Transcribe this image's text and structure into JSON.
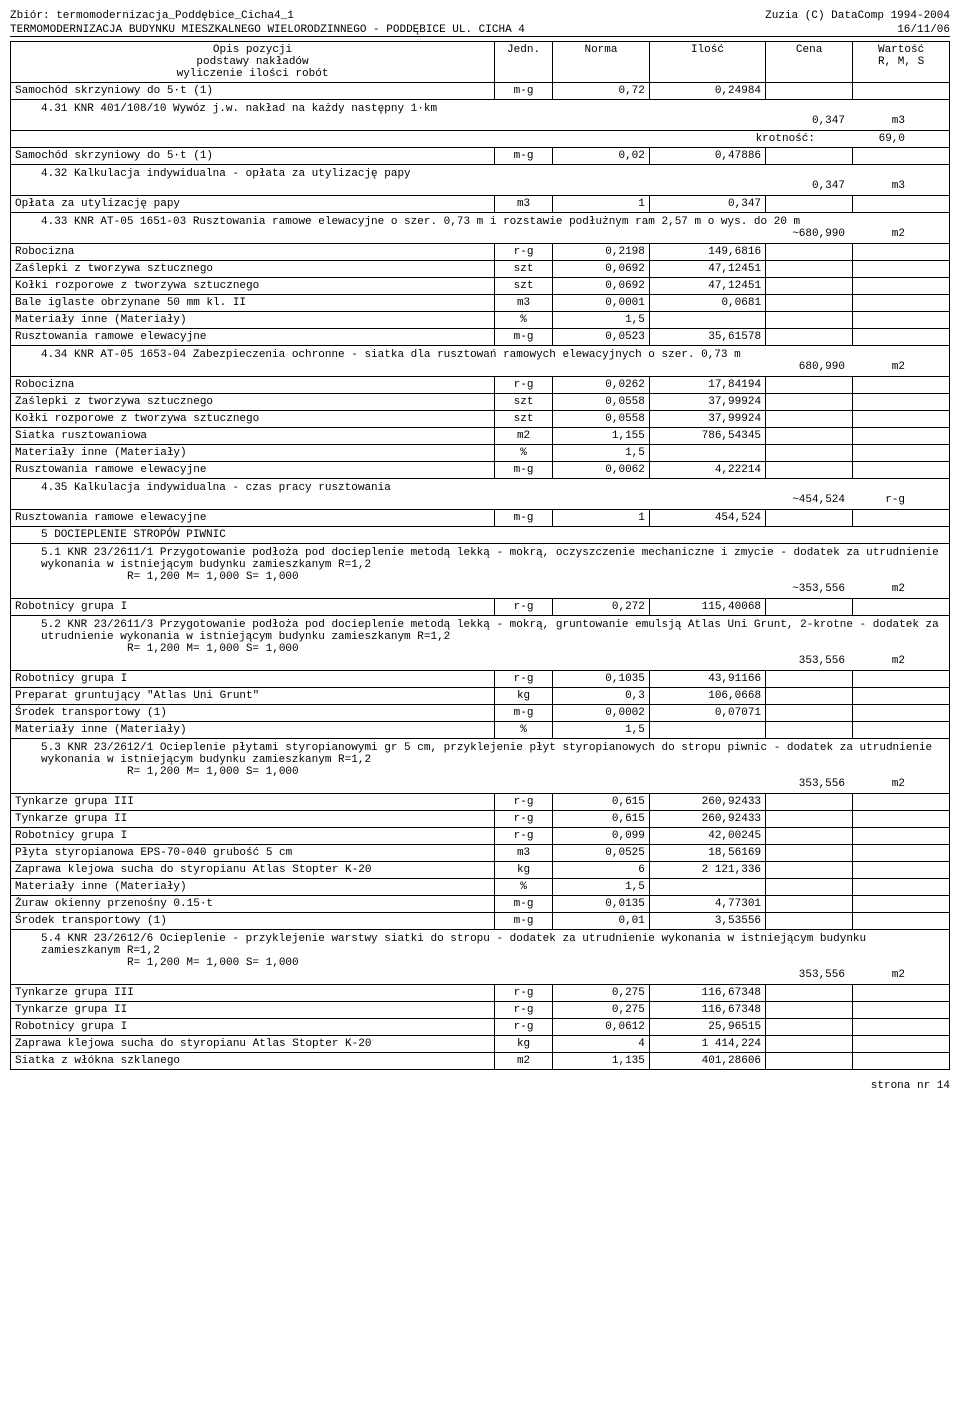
{
  "header": {
    "left1": "Zbiór: termomodernizacja_Poddębice_Cicha4_1",
    "right1": "Zuzia (C) DataComp 1994-2004",
    "left2": "TERMOMODERNIZACJA BUDYNKU MIESZKALNEGO WIELORODZINNEGO - PODDĘBICE UL. CICHA 4",
    "right2": "16/11/06"
  },
  "columns": {
    "opis": "Opis pozycji\npodstawy nakładów\nwyliczenie ilości robót",
    "jedn": "Jedn.",
    "norma": "Norma",
    "ilosc": "Ilość",
    "cena": "Cena",
    "wartosc": "Wartość\nR, M, S"
  },
  "rows": [
    {
      "type": "data",
      "opis": "Samochód skrzyniowy do 5·t (1)",
      "jedn": "m-g",
      "norma": "0,72",
      "ilosc": "0,24984"
    },
    {
      "type": "desc",
      "opis": "4.31 KNR 401/108/10 Wywóz j.w. nakład na każdy następny 1·km",
      "right": "0,347",
      "unit": "m3"
    },
    {
      "type": "krot",
      "label": "krotność:",
      "val": "69,0"
    },
    {
      "type": "data",
      "opis": "Samochód skrzyniowy do 5·t (1)",
      "jedn": "m-g",
      "norma": "0,02",
      "ilosc": "0,47886"
    },
    {
      "type": "desc",
      "opis": "4.32 Kalkulacja indywidualna - opłata za utylizację papy",
      "right": "0,347",
      "unit": "m3"
    },
    {
      "type": "data",
      "opis": "Opłata za utylizację papy",
      "jedn": "m3",
      "norma": "1",
      "ilosc": "0,347"
    },
    {
      "type": "desc",
      "opis": "4.33 KNR AT-05 1651-03 Rusztowania ramowe elewacyjne o szer. 0,73 m i rozstawie podłużnym ram 2,57 m o wys. do 20 m",
      "right": "~680,990",
      "unit": "m2"
    },
    {
      "type": "data",
      "opis": "Robocizna",
      "jedn": "r-g",
      "norma": "0,2198",
      "ilosc": "149,6816"
    },
    {
      "type": "data",
      "opis": "Zaślepki z tworzywa sztucznego",
      "jedn": "szt",
      "norma": "0,0692",
      "ilosc": "47,12451"
    },
    {
      "type": "data",
      "opis": "Kołki rozporowe z tworzywa sztucznego",
      "jedn": "szt",
      "norma": "0,0692",
      "ilosc": "47,12451"
    },
    {
      "type": "data",
      "opis": "Bale iglaste obrzynane 50 mm kl. II",
      "jedn": "m3",
      "norma": "0,0001",
      "ilosc": "0,0681"
    },
    {
      "type": "data",
      "opis": "Materiały inne (Materiały)",
      "jedn": "%",
      "norma": "1,5",
      "ilosc": ""
    },
    {
      "type": "data",
      "opis": "Rusztowania ramowe elewacyjne",
      "jedn": "m-g",
      "norma": "0,0523",
      "ilosc": "35,61578"
    },
    {
      "type": "desc",
      "opis": "4.34 KNR AT-05 1653-04 Zabezpieczenia ochronne - siatka dla rusztowań ramowych elewacyjnych o szer. 0,73 m",
      "right": "680,990",
      "unit": "m2"
    },
    {
      "type": "data",
      "opis": "Robocizna",
      "jedn": "r-g",
      "norma": "0,0262",
      "ilosc": "17,84194"
    },
    {
      "type": "data",
      "opis": "Zaślepki z tworzywa sztucznego",
      "jedn": "szt",
      "norma": "0,0558",
      "ilosc": "37,99924"
    },
    {
      "type": "data",
      "opis": "Kołki rozporowe z tworzywa sztucznego",
      "jedn": "szt",
      "norma": "0,0558",
      "ilosc": "37,99924"
    },
    {
      "type": "data",
      "opis": "Siatka rusztowaniowa",
      "jedn": "m2",
      "norma": "1,155",
      "ilosc": "786,54345"
    },
    {
      "type": "data",
      "opis": "Materiały inne (Materiały)",
      "jedn": "%",
      "norma": "1,5",
      "ilosc": ""
    },
    {
      "type": "data",
      "opis": "Rusztowania ramowe elewacyjne",
      "jedn": "m-g",
      "norma": "0,0062",
      "ilosc": "4,22214"
    },
    {
      "type": "desc",
      "opis": "4.35 Kalkulacja indywidualna - czas pracy rusztowania",
      "right": "~454,524",
      "unit": "r-g"
    },
    {
      "type": "data",
      "opis": "Rusztowania ramowe elewacyjne",
      "jedn": "m-g",
      "norma": "1",
      "ilosc": "454,524"
    },
    {
      "type": "section",
      "opis": "5 DOCIEPLENIE STROPÓW PIWNIC"
    },
    {
      "type": "desc",
      "opis": "5.1 KNR 23/2611/1 Przygotowanie podłoża pod docieplenie metodą lekką - mokrą, oczyszczenie mechaniczne i zmycie - dodatek za utrudnienie wykonania w istniejącym budynku zamieszkanym R=1,2",
      "sub": "R= 1,200   M= 1,000   S= 1,000",
      "right": "~353,556",
      "unit": "m2"
    },
    {
      "type": "data",
      "opis": "Robotnicy grupa I",
      "jedn": "r-g",
      "norma": "0,272",
      "ilosc": "115,40068"
    },
    {
      "type": "desc",
      "opis": "5.2 KNR 23/2611/3 Przygotowanie podłoża pod docieplenie metodą lekką - mokrą, gruntowanie emulsją Atlas Uni Grunt, 2-krotne - dodatek za utrudnienie wykonania w istniejącym budynku zamieszkanym R=1,2",
      "sub": "R= 1,200   M= 1,000   S= 1,000",
      "right": "353,556",
      "unit": "m2"
    },
    {
      "type": "data",
      "opis": "Robotnicy grupa I",
      "jedn": "r-g",
      "norma": "0,1035",
      "ilosc": "43,91166"
    },
    {
      "type": "data",
      "opis": "Preparat gruntujący \"Atlas Uni Grunt\"",
      "jedn": "kg",
      "norma": "0,3",
      "ilosc": "106,0668"
    },
    {
      "type": "data",
      "opis": "Środek transportowy (1)",
      "jedn": "m-g",
      "norma": "0,0002",
      "ilosc": "0,07071"
    },
    {
      "type": "data",
      "opis": "Materiały inne (Materiały)",
      "jedn": "%",
      "norma": "1,5",
      "ilosc": ""
    },
    {
      "type": "desc",
      "opis": "5.3 KNR 23/2612/1 Ocieplenie płytami styropianowymi gr 5 cm, przyklejenie płyt styropianowych do stropu piwnic - dodatek za utrudnienie wykonania w istniejącym budynku zamieszkanym R=1,2",
      "sub": "R= 1,200   M= 1,000   S= 1,000",
      "right": "353,556",
      "unit": "m2"
    },
    {
      "type": "data",
      "opis": "Tynkarze grupa III",
      "jedn": "r-g",
      "norma": "0,615",
      "ilosc": "260,92433"
    },
    {
      "type": "data",
      "opis": "Tynkarze grupa II",
      "jedn": "r-g",
      "norma": "0,615",
      "ilosc": "260,92433"
    },
    {
      "type": "data",
      "opis": "Robotnicy grupa I",
      "jedn": "r-g",
      "norma": "0,099",
      "ilosc": "42,00245"
    },
    {
      "type": "data",
      "opis": "Płyta styropianowa EPS-70-040 grubość 5 cm",
      "jedn": "m3",
      "norma": "0,0525",
      "ilosc": "18,56169"
    },
    {
      "type": "data",
      "opis": "Zaprawa klejowa sucha do styropianu Atlas Stopter K-20",
      "jedn": "kg",
      "norma": "6",
      "ilosc": "2 121,336"
    },
    {
      "type": "data",
      "opis": "Materiały inne (Materiały)",
      "jedn": "%",
      "norma": "1,5",
      "ilosc": ""
    },
    {
      "type": "data",
      "opis": "Żuraw okienny przenośny 0.15·t",
      "jedn": "m-g",
      "norma": "0,0135",
      "ilosc": "4,77301"
    },
    {
      "type": "data",
      "opis": "Środek transportowy (1)",
      "jedn": "m-g",
      "norma": "0,01",
      "ilosc": "3,53556"
    },
    {
      "type": "desc",
      "opis": "5.4 KNR 23/2612/6 Ocieplenie - przyklejenie warstwy siatki do stropu - dodatek za utrudnienie wykonania w istniejącym budynku zamieszkanym R=1,2",
      "sub": "R= 1,200   M= 1,000   S= 1,000",
      "right": "353,556",
      "unit": "m2"
    },
    {
      "type": "data",
      "opis": "Tynkarze grupa III",
      "jedn": "r-g",
      "norma": "0,275",
      "ilosc": "116,67348"
    },
    {
      "type": "data",
      "opis": "Tynkarze grupa II",
      "jedn": "r-g",
      "norma": "0,275",
      "ilosc": "116,67348"
    },
    {
      "type": "data",
      "opis": "Robotnicy grupa I",
      "jedn": "r-g",
      "norma": "0,0612",
      "ilosc": "25,96515"
    },
    {
      "type": "data",
      "opis": "Zaprawa klejowa sucha do styropianu Atlas Stopter K-20",
      "jedn": "kg",
      "norma": "4",
      "ilosc": "1 414,224"
    },
    {
      "type": "data",
      "opis": "Siatka z włókna szklanego",
      "jedn": "m2",
      "norma": "1,135",
      "ilosc": "401,28606"
    }
  ],
  "footer": "strona nr  14"
}
